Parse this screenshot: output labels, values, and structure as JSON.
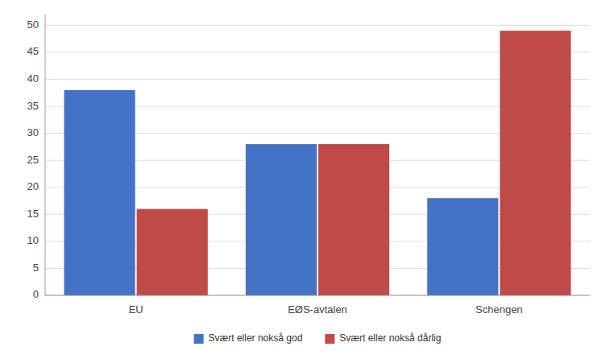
{
  "chart_data": {
    "type": "bar",
    "categories": [
      "EU",
      "EØS-avtalen",
      "Schengen"
    ],
    "series": [
      {
        "name": "Svært eller nokså god",
        "color": "#4472C4",
        "values": [
          38,
          28,
          18
        ]
      },
      {
        "name": "Svært eller nokså dårlig",
        "color": "#BE4B48",
        "values": [
          16,
          28,
          49
        ]
      }
    ],
    "ylim": [
      0,
      52
    ],
    "yticks": [
      0,
      5,
      10,
      15,
      20,
      25,
      30,
      35,
      40,
      45,
      50
    ],
    "grid": true,
    "legend": "bottom"
  }
}
